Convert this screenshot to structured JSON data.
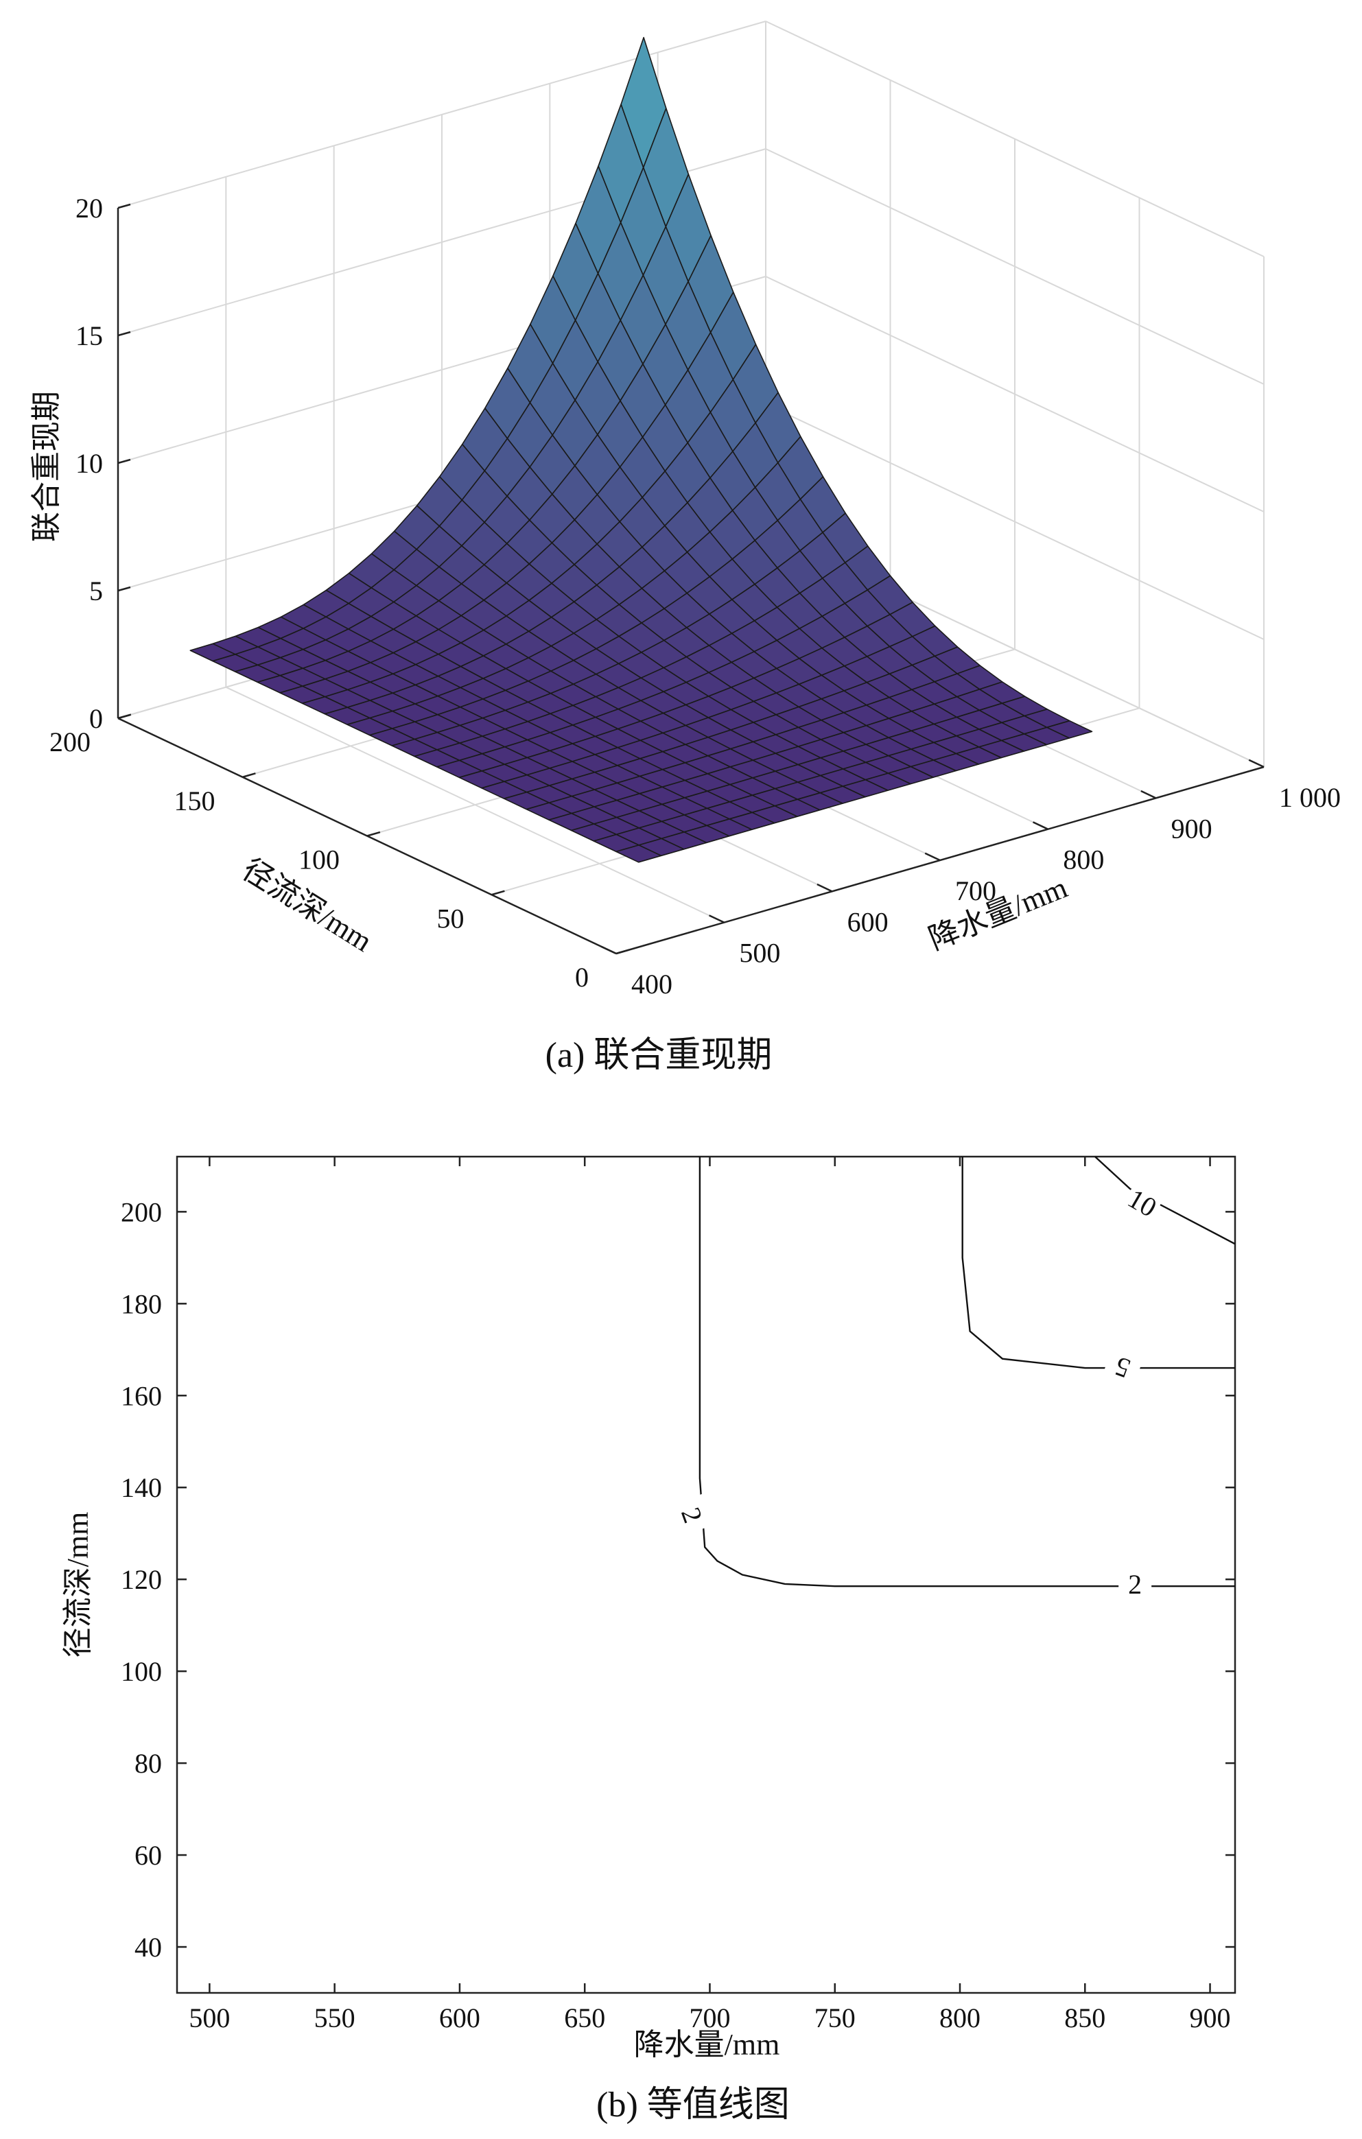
{
  "chart_data": [
    {
      "type": "surface",
      "caption": "(a) 联合重现期",
      "xlabel": "降水量/mm",
      "ylabel": "径流深/mm",
      "zlabel": "联合重现期",
      "x_ticks": [
        "400",
        "500",
        "600",
        "700",
        "800",
        "900",
        "1 000"
      ],
      "y_ticks": [
        "0",
        "50",
        "100",
        "150",
        "200"
      ],
      "z_ticks": [
        "0",
        "5",
        "10",
        "15",
        "20"
      ],
      "xlim": [
        400,
        1000
      ],
      "ylim": [
        0,
        200
      ],
      "zlim": [
        0,
        20
      ],
      "grid": true,
      "surface": {
        "x_range": [
          490,
          910
        ],
        "y_range": [
          30,
          210
        ],
        "grid_size": [
          20,
          20
        ],
        "peak_value": 20,
        "base_value": 1.1
      }
    },
    {
      "type": "contour",
      "caption": "(b) 等值线图",
      "xlabel": "降水量/mm",
      "ylabel": "径流深/mm",
      "xlim": [
        487,
        910
      ],
      "ylim": [
        30,
        212
      ],
      "x_ticks": [
        "500",
        "550",
        "600",
        "650",
        "700",
        "750",
        "800",
        "850",
        "900"
      ],
      "y_ticks": [
        "40",
        "60",
        "80",
        "100",
        "120",
        "140",
        "160",
        "180",
        "200"
      ],
      "contours": [
        {
          "level": "2",
          "labels": [
            {
              "text": "2",
              "x": 693,
              "y": 134,
              "rotation": 70
            },
            {
              "text": "2",
              "x": 870,
              "y": 119,
              "rotation": 0
            }
          ],
          "points": [
            [
              696,
              212
            ],
            [
              696,
              142
            ],
            [
              698,
              127
            ],
            [
              703,
              124
            ],
            [
              713,
              121
            ],
            [
              730,
              119
            ],
            [
              750,
              118.5
            ],
            [
              910,
              118.5
            ]
          ]
        },
        {
          "level": "5",
          "labels": [
            {
              "text": "5",
              "x": 865,
              "y": 166,
              "rotation": -160
            }
          ],
          "points": [
            [
              801,
              212
            ],
            [
              801,
              190
            ],
            [
              804,
              174
            ],
            [
              817,
              168
            ],
            [
              850,
              166
            ],
            [
              910,
              166
            ]
          ]
        },
        {
          "level": "10",
          "labels": [
            {
              "text": "10",
              "x": 873,
              "y": 202,
              "rotation": 30
            }
          ],
          "points": [
            [
              854,
              212
            ],
            [
              868,
              205
            ],
            [
              910,
              193
            ]
          ]
        }
      ]
    }
  ]
}
